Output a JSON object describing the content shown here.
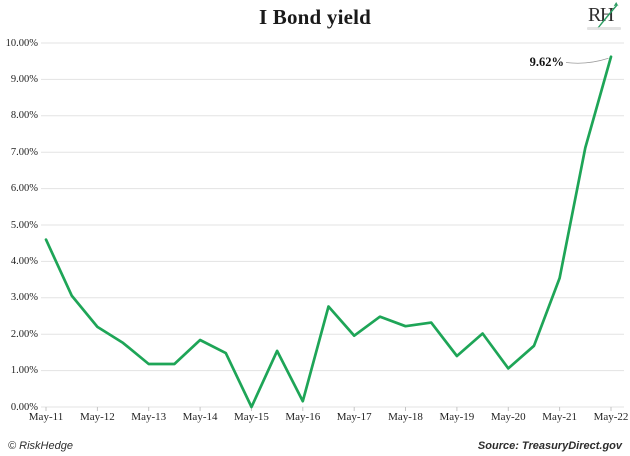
{
  "header": {
    "title": "I Bond yield",
    "logo": {
      "text": "RH",
      "arrow_icon": "up-right-arrow",
      "arrow_color": "#2d9d63"
    }
  },
  "chart_data": {
    "type": "line",
    "title": "I Bond yield",
    "x": [
      "May-11",
      "Nov-11",
      "May-12",
      "Nov-12",
      "May-13",
      "Nov-13",
      "May-14",
      "Nov-14",
      "May-15",
      "Nov-15",
      "May-16",
      "Nov-16",
      "May-17",
      "Nov-17",
      "May-18",
      "Nov-18",
      "May-19",
      "Nov-19",
      "May-20",
      "Nov-20",
      "May-21",
      "Nov-21",
      "May-22"
    ],
    "values": [
      4.6,
      3.06,
      2.2,
      1.76,
      1.18,
      1.18,
      1.84,
      1.48,
      0.0,
      1.54,
      0.16,
      2.76,
      1.96,
      2.48,
      2.22,
      2.32,
      1.4,
      2.02,
      1.06,
      1.68,
      3.54,
      7.12,
      9.62
    ],
    "x_tick_labels": [
      "May-11",
      "May-12",
      "May-13",
      "May-14",
      "May-15",
      "May-16",
      "May-17",
      "May-18",
      "May-19",
      "May-20",
      "May-21",
      "May-22"
    ],
    "y_tick_labels": [
      "0.00%",
      "1.00%",
      "2.00%",
      "3.00%",
      "4.00%",
      "5.00%",
      "6.00%",
      "7.00%",
      "8.00%",
      "9.00%",
      "10.00%"
    ],
    "ylim": [
      0,
      10
    ],
    "grid": "horizontal",
    "legend": "none",
    "line_color": "#1EA557",
    "gridline_color": "#e3e3e3",
    "tick_color": "#c4c4c4",
    "annotation": {
      "text": "9.62%",
      "x": "May-22",
      "value": 9.62
    }
  },
  "footer": {
    "left": "© RiskHedge",
    "right": "Source: TreasuryDirect.gov"
  }
}
